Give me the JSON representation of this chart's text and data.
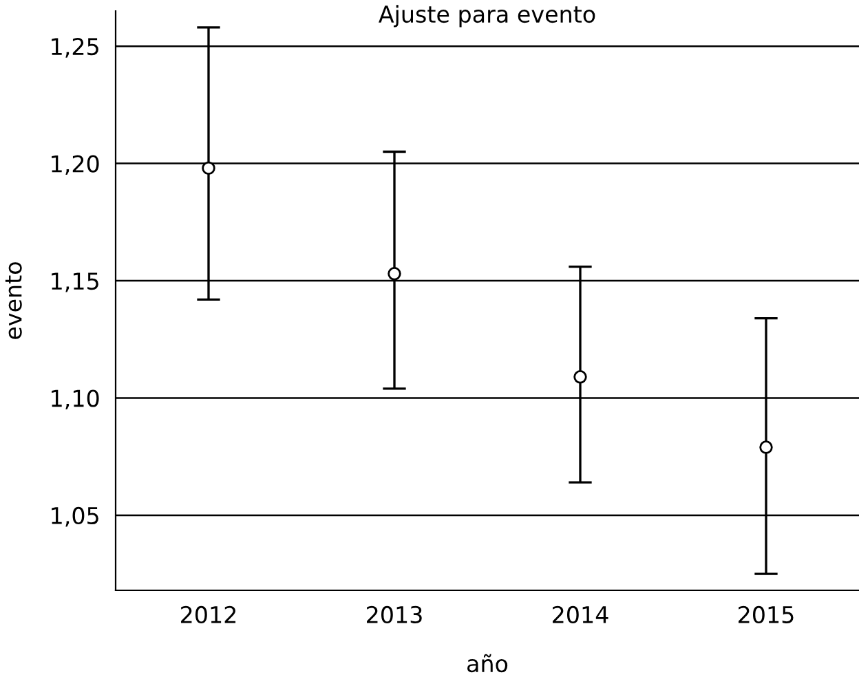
{
  "chart_data": {
    "type": "scatter",
    "title": "Ajuste para evento",
    "xlabel": "año",
    "ylabel": "evento",
    "categories": [
      "2012",
      "2013",
      "2014",
      "2015"
    ],
    "series": [
      {
        "color": "#000000",
        "values": [
          1.198,
          1.153,
          1.109,
          1.079
        ],
        "errors": [
          [
            1.142,
            1.258
          ],
          [
            1.104,
            1.205
          ],
          [
            1.064,
            1.156
          ],
          [
            1.025,
            1.134
          ]
        ]
      }
    ],
    "ylim": [
      1.018,
      1.265
    ],
    "yticks": [
      {
        "value": 1.05,
        "label": "1,05"
      },
      {
        "value": 1.1,
        "label": "1,10"
      },
      {
        "value": 1.15,
        "label": "1,15"
      },
      {
        "value": 1.2,
        "label": "1,20"
      },
      {
        "value": 1.25,
        "label": "1,25"
      }
    ],
    "grid": "y",
    "marker": "circle",
    "legend": false
  }
}
